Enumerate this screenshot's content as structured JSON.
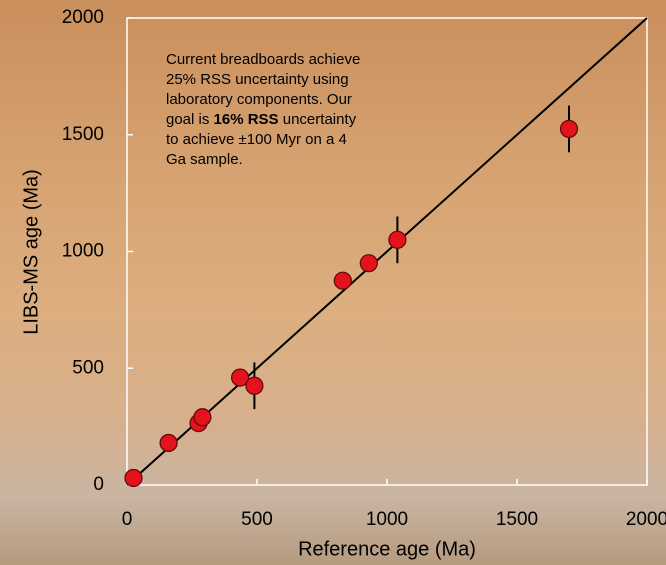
{
  "chart_data": {
    "type": "scatter",
    "xlabel": "Reference age (Ma)",
    "ylabel": "LIBS-MS age (Ma)",
    "x": [
      25,
      160,
      275,
      290,
      435,
      490,
      830,
      930,
      1040,
      1700
    ],
    "values": [
      30,
      180,
      265,
      290,
      460,
      425,
      875,
      950,
      1050,
      1525
    ],
    "errors": [
      null,
      null,
      null,
      null,
      null,
      100,
      null,
      null,
      100,
      100
    ],
    "color": "#e3121b",
    "xlim": [
      0,
      2000
    ],
    "ylim": [
      0,
      2000
    ],
    "xticks": [
      0,
      500,
      1000,
      1500,
      2000
    ],
    "yticks": [
      0,
      500,
      1000,
      1500,
      2000
    ],
    "reference_line": [
      0,
      2000
    ],
    "annotation": {
      "before": "Current breadboards achieve 25% RSS uncertainty using laboratory components. Our goal is",
      "bold": "16% RSS",
      "after": "uncertainty to achieve ±100 Myr on a 4 Ga sample."
    }
  }
}
